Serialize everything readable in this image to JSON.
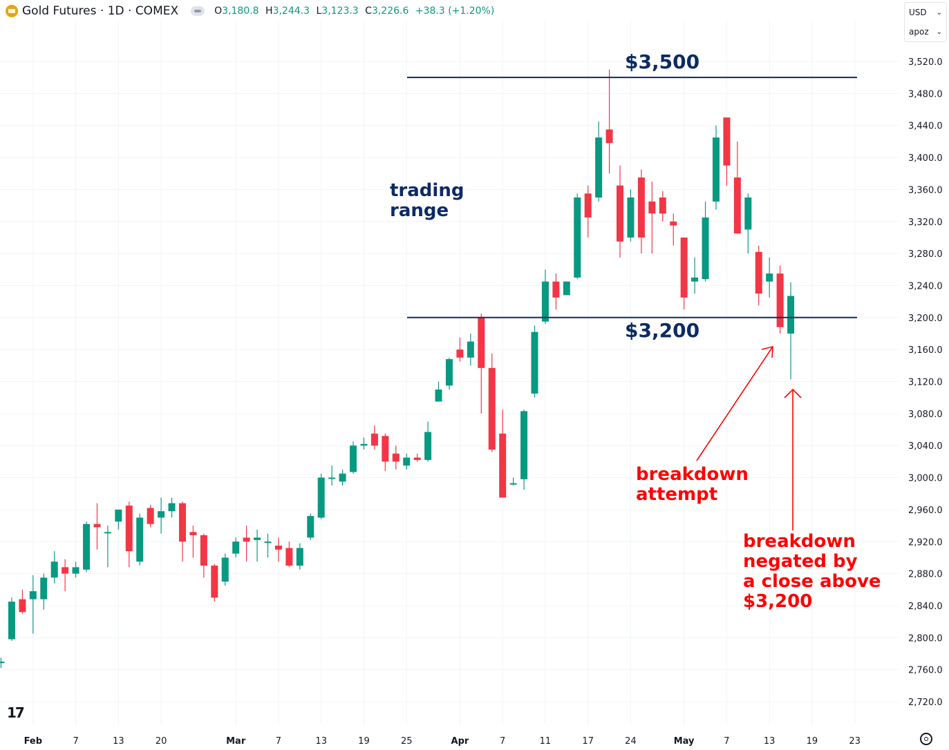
{
  "header": {
    "title": "Gold Futures · 1D · COMEX",
    "ohlc": [
      {
        "label": "O",
        "value": "3,180.8"
      },
      {
        "label": "H",
        "value": "3,244.3"
      },
      {
        "label": "L",
        "value": "3,123.3"
      },
      {
        "label": "C",
        "value": "3,226.6"
      },
      {
        "label": "",
        "value": "+38.3 (+1.20%)"
      }
    ]
  },
  "currency": {
    "selected": "USD",
    "scale": "apoz"
  },
  "colors": {
    "up": "#089981",
    "down": "#f23645",
    "annotation_blue": "#0d2a64",
    "annotation_red": "#ff0000"
  },
  "chart_data": {
    "type": "candlestick",
    "y_tick_labels": [
      "3,520.0",
      "3,480.0",
      "3,440.0",
      "3,400.0",
      "3,360.0",
      "3,320.0",
      "3,280.0",
      "3,240.0",
      "3,200.0",
      "3,160.0",
      "3,120.0",
      "3,080.0",
      "3,040.0",
      "3,000.0",
      "2,960.0",
      "2,920.0",
      "2,880.0",
      "2,840.0",
      "2,800.0",
      "2,760.0",
      "2,720.0"
    ],
    "x_tick_labels": [
      {
        "label": "Feb",
        "i": 3,
        "bold": true
      },
      {
        "label": "7",
        "i": 7
      },
      {
        "label": "13",
        "i": 11
      },
      {
        "label": "20",
        "i": 15
      },
      {
        "label": "Mar",
        "i": 22,
        "bold": true
      },
      {
        "label": "7",
        "i": 26
      },
      {
        "label": "13",
        "i": 30
      },
      {
        "label": "19",
        "i": 34
      },
      {
        "label": "25",
        "i": 38
      },
      {
        "label": "Apr",
        "i": 43,
        "bold": true
      },
      {
        "label": "7",
        "i": 47
      },
      {
        "label": "11",
        "i": 51
      },
      {
        "label": "17",
        "i": 55
      },
      {
        "label": "24",
        "i": 59
      },
      {
        "label": "May",
        "i": 64,
        "bold": true
      },
      {
        "label": "7",
        "i": 68
      },
      {
        "label": "13",
        "i": 72
      },
      {
        "label": "19",
        "i": 76
      },
      {
        "label": "23",
        "i": 80
      }
    ],
    "ylim": [
      2700,
      3540
    ],
    "candles": [
      [
        2770,
        2775,
        2762,
        2770
      ],
      [
        2798,
        2850,
        2796,
        2845
      ],
      [
        2848,
        2860,
        2830,
        2832
      ],
      [
        2848,
        2878,
        2805,
        2858
      ],
      [
        2848,
        2880,
        2835,
        2875
      ],
      [
        2875,
        2908,
        2868,
        2895
      ],
      [
        2888,
        2898,
        2858,
        2880
      ],
      [
        2880,
        2895,
        2875,
        2888
      ],
      [
        2885,
        2945,
        2882,
        2942
      ],
      [
        2942,
        2968,
        2910,
        2938
      ],
      [
        2932,
        2940,
        2888,
        2932
      ],
      [
        2945,
        2960,
        2935,
        2960
      ],
      [
        2965,
        2970,
        2888,
        2908
      ],
      [
        2895,
        2955,
        2890,
        2950
      ],
      [
        2962,
        2966,
        2938,
        2942
      ],
      [
        2950,
        2975,
        2930,
        2958
      ],
      [
        2958,
        2975,
        2950,
        2968
      ],
      [
        2968,
        2970,
        2895,
        2920
      ],
      [
        2932,
        2940,
        2900,
        2928
      ],
      [
        2928,
        2930,
        2875,
        2890
      ],
      [
        2890,
        2892,
        2845,
        2850
      ],
      [
        2870,
        2905,
        2865,
        2900
      ],
      [
        2905,
        2925,
        2900,
        2920
      ],
      [
        2925,
        2940,
        2895,
        2920
      ],
      [
        2922,
        2935,
        2895,
        2925
      ],
      [
        2920,
        2930,
        2900,
        2920
      ],
      [
        2915,
        2925,
        2895,
        2910
      ],
      [
        2912,
        2920,
        2888,
        2890
      ],
      [
        2890,
        2918,
        2885,
        2912
      ],
      [
        2925,
        2955,
        2922,
        2952
      ],
      [
        2950,
        3005,
        2948,
        3000
      ],
      [
        3000,
        3015,
        2990,
        3000
      ],
      [
        2995,
        3010,
        2990,
        3005
      ],
      [
        3007,
        3045,
        3005,
        3040
      ],
      [
        3040,
        3050,
        3035,
        3042
      ],
      [
        3055,
        3065,
        3035,
        3040
      ],
      [
        3052,
        3055,
        3008,
        3020
      ],
      [
        3030,
        3040,
        3010,
        3020
      ],
      [
        3015,
        3030,
        3010,
        3025
      ],
      [
        3025,
        3030,
        3020,
        3022
      ],
      [
        3022,
        3070,
        3020,
        3057
      ],
      [
        3095,
        3120,
        3095,
        3110
      ],
      [
        3115,
        3150,
        3110,
        3148
      ],
      [
        3160,
        3175,
        3145,
        3150
      ],
      [
        3150,
        3180,
        3140,
        3170
      ],
      [
        3200,
        3205,
        3080,
        3137
      ],
      [
        3137,
        3155,
        3032,
        3035
      ],
      [
        3055,
        3085,
        2975,
        2975
      ],
      [
        2992,
        3000,
        2990,
        2993
      ],
      [
        2998,
        3085,
        2985,
        3083
      ],
      [
        3105,
        3190,
        3100,
        3182
      ],
      [
        3195,
        3260,
        3192,
        3245
      ],
      [
        3245,
        3255,
        3210,
        3225
      ],
      [
        3228,
        3245,
        3228,
        3245
      ],
      [
        3250,
        3355,
        3248,
        3350
      ],
      [
        3355,
        3365,
        3300,
        3325
      ],
      [
        3350,
        3445,
        3345,
        3425
      ],
      [
        3435,
        3510,
        3380,
        3418
      ],
      [
        3365,
        3390,
        3275,
        3295
      ],
      [
        3300,
        3360,
        3295,
        3350
      ],
      [
        3375,
        3385,
        3280,
        3300
      ],
      [
        3345,
        3370,
        3280,
        3330
      ],
      [
        3350,
        3358,
        3320,
        3330
      ],
      [
        3320,
        3330,
        3290,
        3315
      ],
      [
        3300,
        3300,
        3210,
        3225
      ],
      [
        3245,
        3275,
        3230,
        3250
      ],
      [
        3248,
        3345,
        3245,
        3325
      ],
      [
        3345,
        3440,
        3335,
        3425
      ],
      [
        3450,
        3450,
        3365,
        3390
      ],
      [
        3375,
        3420,
        3305,
        3305
      ],
      [
        3310,
        3355,
        3280,
        3350
      ],
      [
        3282,
        3290,
        3215,
        3230
      ],
      [
        3245,
        3275,
        3225,
        3255
      ],
      [
        3255,
        3265,
        3180,
        3188
      ],
      [
        3180,
        3244,
        3123,
        3227
      ]
    ],
    "annotations": {
      "level_high": "$3,500",
      "level_low": "$3,200",
      "level_high_value": 3500,
      "level_low_value": 3200,
      "trading_range_lines": [
        "trading",
        "range"
      ],
      "breakdown_attempt_lines": [
        "breakdown",
        "attempt"
      ],
      "negated_lines": [
        "breakdown",
        "negated by",
        "a close above",
        "$3,200"
      ]
    }
  }
}
